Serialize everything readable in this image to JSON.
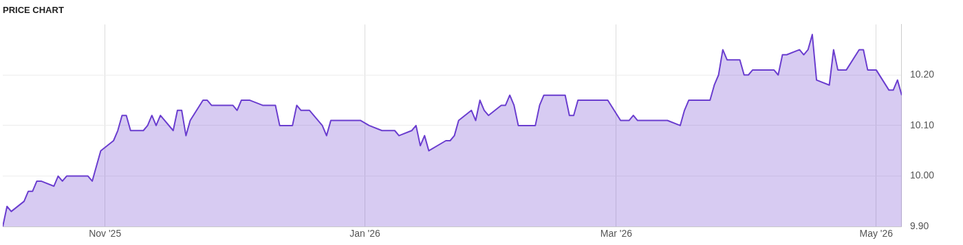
{
  "chart_data": {
    "type": "area",
    "title": "PRICE CHART",
    "x": [
      "2025-10-08",
      "2025-10-09",
      "2025-10-10",
      "2025-10-13",
      "2025-10-14",
      "2025-10-15",
      "2025-10-16",
      "2025-10-17",
      "2025-10-20",
      "2025-10-21",
      "2025-10-22",
      "2025-10-23",
      "2025-10-28",
      "2025-10-29",
      "2025-10-30",
      "2025-10-31",
      "2025-11-03",
      "2025-11-04",
      "2025-11-05",
      "2025-11-06",
      "2025-11-07",
      "2025-11-10",
      "2025-11-11",
      "2025-11-12",
      "2025-11-13",
      "2025-11-14",
      "2025-11-17",
      "2025-11-18",
      "2025-11-19",
      "2025-11-20",
      "2025-11-21",
      "2025-11-24",
      "2025-11-25",
      "2025-11-26",
      "2025-12-01",
      "2025-12-02",
      "2025-12-03",
      "2025-12-05",
      "2025-12-08",
      "2025-12-11",
      "2025-12-12",
      "2025-12-15",
      "2025-12-16",
      "2025-12-17",
      "2025-12-19",
      "2025-12-22",
      "2025-12-23",
      "2025-12-24",
      "2025-12-31",
      "2026-01-02",
      "2026-01-05",
      "2026-01-08",
      "2026-01-09",
      "2026-01-12",
      "2026-01-13",
      "2026-01-14",
      "2026-01-15",
      "2026-01-16",
      "2026-01-20",
      "2026-01-21",
      "2026-01-22",
      "2026-01-23",
      "2026-01-26",
      "2026-01-27",
      "2026-01-28",
      "2026-01-29",
      "2026-01-30",
      "2026-02-02",
      "2026-02-03",
      "2026-02-04",
      "2026-02-05",
      "2026-02-06",
      "2026-02-10",
      "2026-02-11",
      "2026-02-12",
      "2026-02-17",
      "2026-02-18",
      "2026-02-19",
      "2026-02-20",
      "2026-02-27",
      "2026-03-02",
      "2026-03-04",
      "2026-03-05",
      "2026-03-06",
      "2026-03-13",
      "2026-03-16",
      "2026-03-17",
      "2026-03-18",
      "2026-03-23",
      "2026-03-24",
      "2026-03-25",
      "2026-03-26",
      "2026-03-27",
      "2026-03-30",
      "2026-03-31",
      "2026-04-01",
      "2026-04-02",
      "2026-04-07",
      "2026-04-08",
      "2026-04-09",
      "2026-04-10",
      "2026-04-13",
      "2026-04-14",
      "2026-04-15",
      "2026-04-16",
      "2026-04-17",
      "2026-04-20",
      "2026-04-21",
      "2026-04-22",
      "2026-04-24",
      "2026-04-27",
      "2026-04-28",
      "2026-04-29",
      "2026-05-01",
      "2026-05-04",
      "2026-05-05",
      "2026-05-06",
      "2026-05-07"
    ],
    "series": [
      {
        "color": "#6a3dcf",
        "values": [
          9.9,
          9.94,
          9.93,
          9.95,
          9.97,
          9.97,
          9.99,
          9.99,
          9.98,
          10.0,
          9.99,
          10.0,
          10.0,
          9.99,
          10.02,
          10.05,
          10.07,
          10.09,
          10.12,
          10.12,
          10.09,
          10.09,
          10.1,
          10.12,
          10.1,
          10.12,
          10.09,
          10.13,
          10.13,
          10.08,
          10.11,
          10.15,
          10.15,
          10.14,
          10.14,
          10.13,
          10.15,
          10.15,
          10.14,
          10.14,
          10.1,
          10.1,
          10.14,
          10.13,
          10.13,
          10.1,
          10.08,
          10.11,
          10.11,
          10.1,
          10.09,
          10.09,
          10.08,
          10.09,
          10.1,
          10.06,
          10.08,
          10.05,
          10.07,
          10.07,
          10.08,
          10.11,
          10.13,
          10.11,
          10.15,
          10.13,
          10.12,
          10.14,
          10.14,
          10.16,
          10.14,
          10.1,
          10.1,
          10.14,
          10.16,
          10.16,
          10.12,
          10.12,
          10.15,
          10.15,
          10.11,
          10.11,
          10.12,
          10.11,
          10.11,
          10.1,
          10.13,
          10.15,
          10.15,
          10.18,
          10.2,
          10.25,
          10.23,
          10.23,
          10.2,
          10.2,
          10.21,
          10.21,
          10.2,
          10.24,
          10.24,
          10.25,
          10.24,
          10.25,
          10.28,
          10.19,
          10.18,
          10.25,
          10.21,
          10.21,
          10.25,
          10.25,
          10.21,
          10.21,
          10.17,
          10.17,
          10.19,
          10.16
        ]
      }
    ],
    "xlim": [
      "2025-10-08",
      "2026-05-07"
    ],
    "xticks": [
      {
        "value": "2025-11-01",
        "label": "Nov '25"
      },
      {
        "value": "2026-01-01",
        "label": "Jan '26"
      },
      {
        "value": "2026-03-01",
        "label": "Mar '26"
      },
      {
        "value": "2026-05-01",
        "label": "May '26"
      }
    ],
    "ylim": [
      9.9,
      10.3
    ],
    "yticks": [
      {
        "value": 9.9,
        "label": "9.90"
      },
      {
        "value": 10.0,
        "label": "10.00"
      },
      {
        "value": 10.1,
        "label": "10.10"
      },
      {
        "value": 10.2,
        "label": "10.20"
      }
    ],
    "grid": true
  }
}
